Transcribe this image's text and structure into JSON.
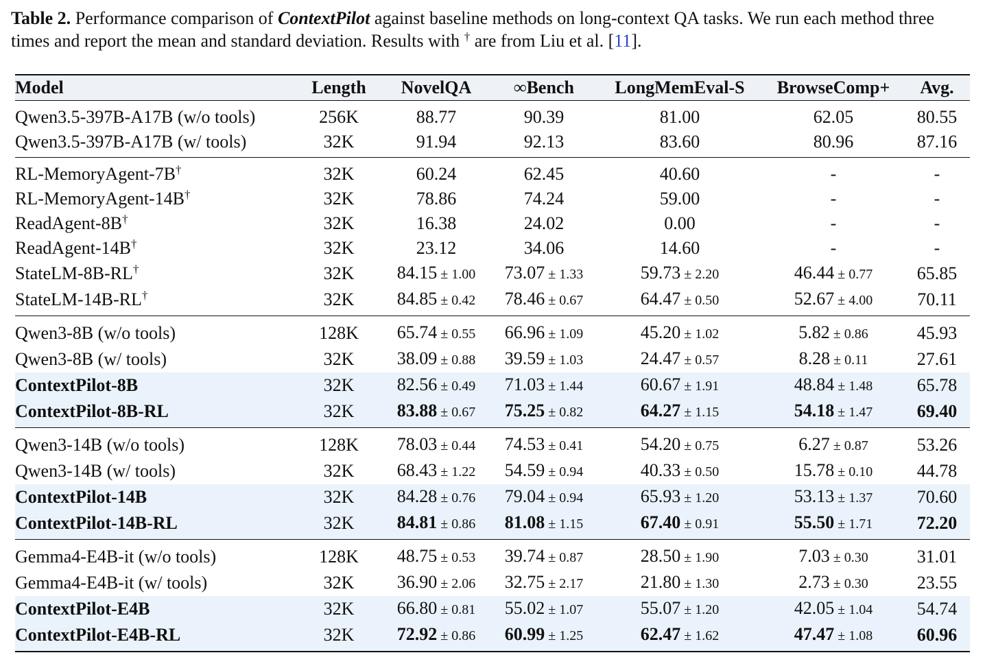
{
  "caption": {
    "label": "Table 2.",
    "text_before": "Performance comparison of",
    "method_name": "ContextPilot",
    "text_after": "against baseline methods on long-context QA tasks. We run each method three times and report the mean and standard deviation. Results with",
    "dagger": "†",
    "text_tail": "are from Liu et al. [",
    "ref": "11",
    "text_end": "]."
  },
  "table": {
    "headers": [
      "Model",
      "Length",
      "NovelQA",
      "∞Bench",
      "LongMemEval-S",
      "BrowseComp+",
      "Avg."
    ],
    "pm": "±",
    "groups": [
      [
        {
          "model": "Qwen3.5-397B-A17B (w/o tools)",
          "length": "256K",
          "cells": [
            {
              "v": "88.77"
            },
            {
              "v": "90.39"
            },
            {
              "v": "81.00"
            },
            {
              "v": "62.05"
            }
          ],
          "avg": "80.55"
        },
        {
          "model": "Qwen3.5-397B-A17B (w/ tools)",
          "length": "32K",
          "cells": [
            {
              "v": "91.94"
            },
            {
              "v": "92.13"
            },
            {
              "v": "83.60"
            },
            {
              "v": "80.96"
            }
          ],
          "avg": "87.16"
        }
      ],
      [
        {
          "model": "RL-MemoryAgent-7B",
          "dagger": "†",
          "length": "32K",
          "cells": [
            {
              "v": "60.24"
            },
            {
              "v": "62.45"
            },
            {
              "v": "40.60"
            },
            {
              "v": "-"
            }
          ],
          "avg": "-"
        },
        {
          "model": "RL-MemoryAgent-14B",
          "dagger": "†",
          "length": "32K",
          "cells": [
            {
              "v": "78.86"
            },
            {
              "v": "74.24"
            },
            {
              "v": "59.00"
            },
            {
              "v": "-"
            }
          ],
          "avg": "-"
        },
        {
          "model": "ReadAgent-8B",
          "dagger": "†",
          "length": "32K",
          "cells": [
            {
              "v": "16.38"
            },
            {
              "v": "24.02"
            },
            {
              "v": "0.00"
            },
            {
              "v": "-"
            }
          ],
          "avg": "-"
        },
        {
          "model": "ReadAgent-14B",
          "dagger": "†",
          "length": "32K",
          "cells": [
            {
              "v": "23.12"
            },
            {
              "v": "34.06"
            },
            {
              "v": "14.60"
            },
            {
              "v": "-"
            }
          ],
          "avg": "-"
        },
        {
          "model": "StateLM-8B-RL",
          "dagger": "†",
          "length": "32K",
          "cells": [
            {
              "v": "84.15",
              "s": "1.00"
            },
            {
              "v": "73.07",
              "s": "1.33"
            },
            {
              "v": "59.73",
              "s": "2.20"
            },
            {
              "v": "46.44",
              "s": "0.77"
            }
          ],
          "avg": "65.85"
        },
        {
          "model": "StateLM-14B-RL",
          "dagger": "†",
          "length": "32K",
          "cells": [
            {
              "v": "84.85",
              "s": "0.42"
            },
            {
              "v": "78.46",
              "s": "0.67"
            },
            {
              "v": "64.47",
              "s": "0.50"
            },
            {
              "v": "52.67",
              "s": "4.00"
            }
          ],
          "avg": "70.11"
        }
      ],
      [
        {
          "model": "Qwen3-8B (w/o tools)",
          "length": "128K",
          "cells": [
            {
              "v": "65.74",
              "s": "0.55"
            },
            {
              "v": "66.96",
              "s": "1.09"
            },
            {
              "v": "45.20",
              "s": "1.02"
            },
            {
              "v": "5.82",
              "s": "0.86"
            }
          ],
          "avg": "45.93"
        },
        {
          "model": "Qwen3-8B (w/ tools)",
          "length": "32K",
          "cells": [
            {
              "v": "38.09",
              "s": "0.88"
            },
            {
              "v": "39.59",
              "s": "1.03"
            },
            {
              "v": "24.47",
              "s": "0.57"
            },
            {
              "v": "8.28",
              "s": "0.11"
            }
          ],
          "avg": "27.61"
        },
        {
          "model": "ContextPilot-8B",
          "hl": true,
          "length": "32K",
          "cells": [
            {
              "v": "82.56",
              "s": "0.49"
            },
            {
              "v": "71.03",
              "s": "1.44"
            },
            {
              "v": "60.67",
              "s": "1.91"
            },
            {
              "v": "48.84",
              "s": "1.48"
            }
          ],
          "avg": "65.78"
        },
        {
          "model": "ContextPilot-8B-RL",
          "hl": true,
          "length": "32K",
          "cells": [
            {
              "v": "83.88",
              "s": "0.67",
              "b": true
            },
            {
              "v": "75.25",
              "s": "0.82",
              "b": true
            },
            {
              "v": "64.27",
              "s": "1.15",
              "b": true
            },
            {
              "v": "54.18",
              "s": "1.47",
              "b": true
            }
          ],
          "avg": "69.40",
          "avg_b": true
        }
      ],
      [
        {
          "model": "Qwen3-14B (w/o tools)",
          "length": "128K",
          "cells": [
            {
              "v": "78.03",
              "s": "0.44"
            },
            {
              "v": "74.53",
              "s": "0.41"
            },
            {
              "v": "54.20",
              "s": "0.75"
            },
            {
              "v": "6.27",
              "s": "0.87"
            }
          ],
          "avg": "53.26"
        },
        {
          "model": "Qwen3-14B (w/ tools)",
          "length": "32K",
          "cells": [
            {
              "v": "68.43",
              "s": "1.22"
            },
            {
              "v": "54.59",
              "s": "0.94"
            },
            {
              "v": "40.33",
              "s": "0.50"
            },
            {
              "v": "15.78",
              "s": "0.10"
            }
          ],
          "avg": "44.78"
        },
        {
          "model": "ContextPilot-14B",
          "hl": true,
          "length": "32K",
          "cells": [
            {
              "v": "84.28",
              "s": "0.76"
            },
            {
              "v": "79.04",
              "s": "0.94"
            },
            {
              "v": "65.93",
              "s": "1.20"
            },
            {
              "v": "53.13",
              "s": "1.37"
            }
          ],
          "avg": "70.60"
        },
        {
          "model": "ContextPilot-14B-RL",
          "hl": true,
          "length": "32K",
          "cells": [
            {
              "v": "84.81",
              "s": "0.86",
              "b": true
            },
            {
              "v": "81.08",
              "s": "1.15",
              "b": true
            },
            {
              "v": "67.40",
              "s": "0.91",
              "b": true
            },
            {
              "v": "55.50",
              "s": "1.71",
              "b": true
            }
          ],
          "avg": "72.20",
          "avg_b": true
        }
      ],
      [
        {
          "model": "Gemma4-E4B-it (w/o tools)",
          "length": "128K",
          "cells": [
            {
              "v": "48.75",
              "s": "0.53"
            },
            {
              "v": "39.74",
              "s": "0.87"
            },
            {
              "v": "28.50",
              "s": "1.90"
            },
            {
              "v": "7.03",
              "s": "0.30"
            }
          ],
          "avg": "31.01"
        },
        {
          "model": "Gemma4-E4B-it (w/ tools)",
          "length": "32K",
          "cells": [
            {
              "v": "36.90",
              "s": "2.06"
            },
            {
              "v": "32.75",
              "s": "2.17"
            },
            {
              "v": "21.80",
              "s": "1.30"
            },
            {
              "v": "2.73",
              "s": "0.30"
            }
          ],
          "avg": "23.55"
        },
        {
          "model": "ContextPilot-E4B",
          "hl": true,
          "length": "32K",
          "cells": [
            {
              "v": "66.80",
              "s": "0.81"
            },
            {
              "v": "55.02",
              "s": "1.07"
            },
            {
              "v": "55.07",
              "s": "1.20"
            },
            {
              "v": "42.05",
              "s": "1.04"
            }
          ],
          "avg": "54.74"
        },
        {
          "model": "ContextPilot-E4B-RL",
          "hl": true,
          "length": "32K",
          "cells": [
            {
              "v": "72.92",
              "s": "0.86",
              "b": true
            },
            {
              "v": "60.99",
              "s": "1.25",
              "b": true
            },
            {
              "v": "62.47",
              "s": "1.62",
              "b": true
            },
            {
              "v": "47.47",
              "s": "1.08",
              "b": true
            }
          ],
          "avg": "60.96",
          "avg_b": true
        }
      ]
    ]
  }
}
